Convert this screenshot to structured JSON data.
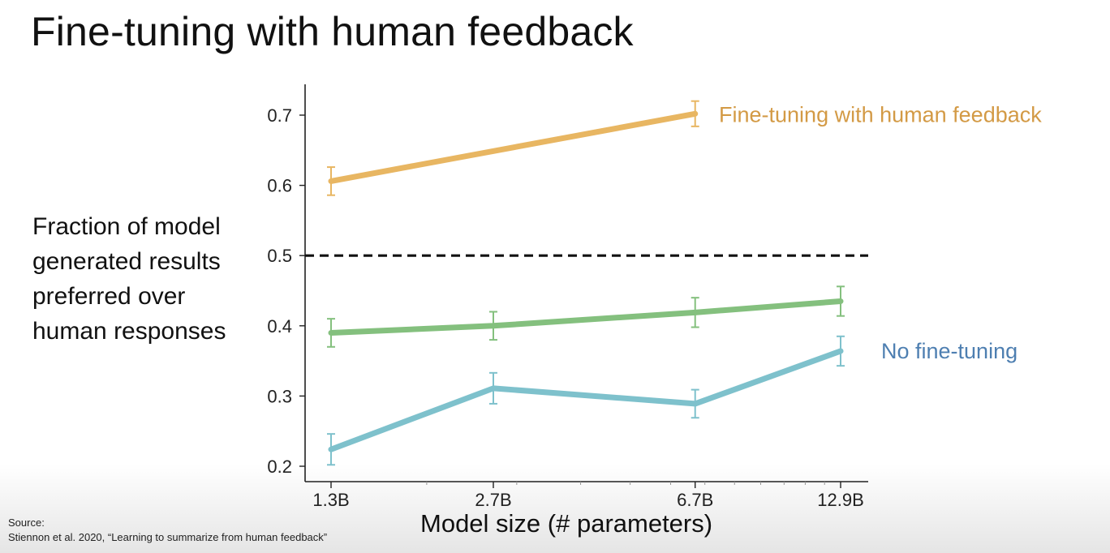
{
  "slide": {
    "title": "Fine-tuning with human feedback",
    "source_label": "Source:",
    "source_text": "Stiennon et al. 2020, “Learning to summarize from human feedback”"
  },
  "chart_data": {
    "type": "line",
    "ylabel_lines": [
      "Fraction of model",
      "generated results",
      "preferred over",
      "human responses"
    ],
    "xlabel": "Model size (# parameters)",
    "categories": [
      "1.3B",
      "2.7B",
      "6.7B",
      "12.9B"
    ],
    "x_scale": "log",
    "x_values_billions": [
      1.3,
      2.7,
      6.7,
      12.9
    ],
    "ylim": [
      0.18,
      0.745
    ],
    "yticks": [
      0.2,
      0.3,
      0.4,
      0.5,
      0.6,
      0.7
    ],
    "ytick_labels": [
      "0.2",
      "0.3",
      "0.4",
      "0.5",
      "0.6",
      "0.7"
    ],
    "reference_line": {
      "y": 0.5,
      "style": "dashed",
      "color": "#111111"
    },
    "series": [
      {
        "name": "Fine-tuning with human feedback",
        "color": "#E8B662",
        "label_color": "#D39A45",
        "x": [
          1.3,
          6.7
        ],
        "y": [
          0.606,
          0.702
        ],
        "err": [
          0.02,
          0.018
        ]
      },
      {
        "color": "#84C07E",
        "x": [
          1.3,
          2.7,
          6.7,
          12.9
        ],
        "y": [
          0.39,
          0.4,
          0.419,
          0.435
        ],
        "err": [
          0.02,
          0.02,
          0.021,
          0.021
        ]
      },
      {
        "name": "No fine-tuning",
        "color": "#7EC1CC",
        "label_color": "#4E7FB1",
        "x": [
          1.3,
          2.7,
          6.7,
          12.9
        ],
        "y": [
          0.224,
          0.311,
          0.289,
          0.364
        ],
        "err": [
          0.022,
          0.022,
          0.02,
          0.021
        ]
      }
    ]
  }
}
